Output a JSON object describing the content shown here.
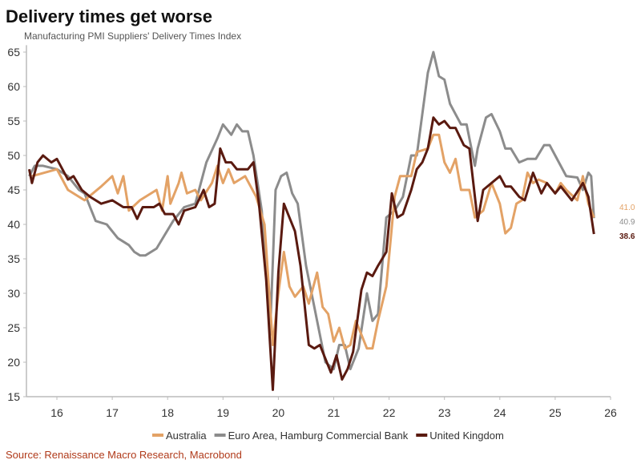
{
  "chart_data": {
    "type": "line",
    "title": "Delivery times get worse",
    "subtitle": "Manufacturing PMI Suppliers' Delivery Times Index",
    "source": "Source: Renaissance Macro Research, Macrobond",
    "xlim": [
      15.45,
      26
    ],
    "ylim": [
      15,
      66
    ],
    "xticks": [
      "16",
      "17",
      "18",
      "19",
      "20",
      "21",
      "22",
      "23",
      "24",
      "25",
      "26"
    ],
    "yticks": [
      "15",
      "20",
      "25",
      "30",
      "35",
      "40",
      "45",
      "50",
      "55",
      "60",
      "65"
    ],
    "grid": false,
    "legend": "bottom",
    "series": [
      {
        "name": "Australia",
        "color": "#E3A266",
        "end_label": "41.0",
        "points": [
          [
            15.55,
            47
          ],
          [
            16.0,
            48
          ],
          [
            16.2,
            45
          ],
          [
            16.5,
            43.5
          ],
          [
            16.8,
            45.5
          ],
          [
            17.0,
            47
          ],
          [
            17.1,
            44.5
          ],
          [
            17.2,
            47
          ],
          [
            17.3,
            42
          ],
          [
            17.5,
            43.5
          ],
          [
            17.8,
            45
          ],
          [
            17.9,
            42
          ],
          [
            18.0,
            47
          ],
          [
            18.05,
            43
          ],
          [
            18.2,
            46
          ],
          [
            18.25,
            47.5
          ],
          [
            18.35,
            44.5
          ],
          [
            18.5,
            45
          ],
          [
            18.6,
            43.5
          ],
          [
            18.8,
            46
          ],
          [
            18.9,
            48.5
          ],
          [
            19.0,
            46
          ],
          [
            19.1,
            48
          ],
          [
            19.2,
            46
          ],
          [
            19.4,
            47
          ],
          [
            19.6,
            44
          ],
          [
            19.75,
            40
          ],
          [
            19.9,
            22.5
          ],
          [
            20.0,
            30
          ],
          [
            20.1,
            36
          ],
          [
            20.2,
            31
          ],
          [
            20.3,
            29.5
          ],
          [
            20.45,
            31
          ],
          [
            20.55,
            28.5
          ],
          [
            20.7,
            33
          ],
          [
            20.8,
            28
          ],
          [
            20.9,
            27
          ],
          [
            21.0,
            23
          ],
          [
            21.1,
            25
          ],
          [
            21.2,
            22
          ],
          [
            21.3,
            22.5
          ],
          [
            21.4,
            26
          ],
          [
            21.5,
            24
          ],
          [
            21.6,
            22
          ],
          [
            21.7,
            22
          ],
          [
            21.8,
            26
          ],
          [
            21.95,
            31
          ],
          [
            22.1,
            44
          ],
          [
            22.2,
            47
          ],
          [
            22.4,
            47
          ],
          [
            22.5,
            50.5
          ],
          [
            22.7,
            51
          ],
          [
            22.8,
            53
          ],
          [
            22.9,
            53
          ],
          [
            23.0,
            49
          ],
          [
            23.1,
            47.5
          ],
          [
            23.2,
            49.5
          ],
          [
            23.3,
            45
          ],
          [
            23.45,
            45
          ],
          [
            23.55,
            41
          ],
          [
            23.7,
            42
          ],
          [
            23.85,
            46
          ],
          [
            24.0,
            43
          ],
          [
            24.1,
            38.7
          ],
          [
            24.2,
            39.5
          ],
          [
            24.3,
            43
          ],
          [
            24.4,
            43.5
          ],
          [
            24.5,
            47.5
          ],
          [
            24.6,
            46
          ],
          [
            24.7,
            46.5
          ],
          [
            24.85,
            46
          ],
          [
            25.0,
            44.5
          ],
          [
            25.1,
            46
          ],
          [
            25.2,
            45
          ],
          [
            25.4,
            43.5
          ],
          [
            25.5,
            47
          ],
          [
            25.6,
            43
          ],
          [
            25.7,
            41.0
          ]
        ]
      },
      {
        "name": "Euro Area, Hamburg Commercial Bank",
        "color": "#8C8C8C",
        "end_label": "40.9",
        "points": [
          [
            15.5,
            47
          ],
          [
            15.6,
            48.5
          ],
          [
            15.75,
            48.5
          ],
          [
            16.0,
            48
          ],
          [
            16.2,
            47
          ],
          [
            16.4,
            45
          ],
          [
            16.5,
            44.5
          ],
          [
            16.7,
            40.5
          ],
          [
            16.9,
            40
          ],
          [
            17.1,
            38
          ],
          [
            17.3,
            37
          ],
          [
            17.4,
            36
          ],
          [
            17.5,
            35.5
          ],
          [
            17.6,
            35.5
          ],
          [
            17.8,
            36.5
          ],
          [
            17.95,
            38.5
          ],
          [
            18.1,
            40.5
          ],
          [
            18.3,
            42.5
          ],
          [
            18.5,
            43
          ],
          [
            18.7,
            49
          ],
          [
            18.9,
            52.5
          ],
          [
            19.0,
            54.5
          ],
          [
            19.15,
            53
          ],
          [
            19.25,
            54.5
          ],
          [
            19.35,
            53.5
          ],
          [
            19.45,
            53.5
          ],
          [
            19.55,
            50
          ],
          [
            19.7,
            42
          ],
          [
            19.85,
            24
          ],
          [
            19.95,
            45
          ],
          [
            20.05,
            47
          ],
          [
            20.15,
            47.5
          ],
          [
            20.25,
            44.5
          ],
          [
            20.35,
            43
          ],
          [
            20.5,
            34
          ],
          [
            20.7,
            26
          ],
          [
            20.85,
            20
          ],
          [
            21.0,
            19
          ],
          [
            21.1,
            22.5
          ],
          [
            21.2,
            22.5
          ],
          [
            21.3,
            19
          ],
          [
            21.45,
            22
          ],
          [
            21.6,
            30
          ],
          [
            21.7,
            26
          ],
          [
            21.8,
            27
          ],
          [
            21.95,
            41
          ],
          [
            22.1,
            42
          ],
          [
            22.25,
            44
          ],
          [
            22.4,
            50
          ],
          [
            22.5,
            50
          ],
          [
            22.6,
            56
          ],
          [
            22.7,
            62
          ],
          [
            22.8,
            65
          ],
          [
            22.9,
            61.5
          ],
          [
            23.0,
            61
          ],
          [
            23.1,
            57.5
          ],
          [
            23.2,
            56
          ],
          [
            23.3,
            54.5
          ],
          [
            23.4,
            54.5
          ],
          [
            23.55,
            48.5
          ],
          [
            23.6,
            51
          ],
          [
            23.75,
            55.5
          ],
          [
            23.85,
            56
          ],
          [
            24.0,
            53.5
          ],
          [
            24.1,
            51
          ],
          [
            24.2,
            51
          ],
          [
            24.35,
            49
          ],
          [
            24.5,
            49.5
          ],
          [
            24.65,
            49.5
          ],
          [
            24.8,
            51.5
          ],
          [
            24.9,
            51.5
          ],
          [
            25.0,
            50
          ],
          [
            25.2,
            47
          ],
          [
            25.4,
            46.8
          ],
          [
            25.5,
            45
          ],
          [
            25.6,
            47.5
          ],
          [
            25.65,
            47
          ],
          [
            25.7,
            40.9
          ]
        ]
      },
      {
        "name": "United Kingdom",
        "color": "#5A1A10",
        "end_label": "38.6",
        "points": [
          [
            15.5,
            48
          ],
          [
            15.55,
            46
          ],
          [
            15.65,
            49
          ],
          [
            15.75,
            50
          ],
          [
            15.9,
            49
          ],
          [
            16.0,
            49.5
          ],
          [
            16.2,
            46.5
          ],
          [
            16.3,
            47
          ],
          [
            16.45,
            45
          ],
          [
            16.6,
            44
          ],
          [
            16.8,
            43
          ],
          [
            17.0,
            43.5
          ],
          [
            17.2,
            42.5
          ],
          [
            17.35,
            42.5
          ],
          [
            17.45,
            40.8
          ],
          [
            17.55,
            42.5
          ],
          [
            17.75,
            42.5
          ],
          [
            17.85,
            43
          ],
          [
            17.95,
            41.5
          ],
          [
            18.1,
            41.5
          ],
          [
            18.2,
            40
          ],
          [
            18.3,
            42
          ],
          [
            18.5,
            42.5
          ],
          [
            18.65,
            45
          ],
          [
            18.75,
            42.5
          ],
          [
            18.85,
            43
          ],
          [
            18.95,
            51
          ],
          [
            19.05,
            49
          ],
          [
            19.15,
            49
          ],
          [
            19.25,
            48
          ],
          [
            19.35,
            48
          ],
          [
            19.45,
            48
          ],
          [
            19.55,
            49
          ],
          [
            19.65,
            43
          ],
          [
            19.78,
            32
          ],
          [
            19.9,
            16
          ],
          [
            20.0,
            33
          ],
          [
            20.1,
            43
          ],
          [
            20.2,
            41
          ],
          [
            20.3,
            39
          ],
          [
            20.4,
            34
          ],
          [
            20.55,
            22.5
          ],
          [
            20.65,
            22
          ],
          [
            20.75,
            22.5
          ],
          [
            20.85,
            20.5
          ],
          [
            20.95,
            18.5
          ],
          [
            21.05,
            21
          ],
          [
            21.15,
            17.5
          ],
          [
            21.25,
            19
          ],
          [
            21.35,
            21.5
          ],
          [
            21.5,
            30.5
          ],
          [
            21.6,
            33
          ],
          [
            21.7,
            32.5
          ],
          [
            21.8,
            34
          ],
          [
            21.95,
            36
          ],
          [
            22.05,
            44.5
          ],
          [
            22.15,
            41
          ],
          [
            22.25,
            41.5
          ],
          [
            22.4,
            45
          ],
          [
            22.5,
            48
          ],
          [
            22.6,
            49
          ],
          [
            22.7,
            51
          ],
          [
            22.8,
            55.5
          ],
          [
            22.9,
            54.5
          ],
          [
            23.0,
            55
          ],
          [
            23.1,
            54
          ],
          [
            23.2,
            54
          ],
          [
            23.35,
            51.5
          ],
          [
            23.45,
            51
          ],
          [
            23.6,
            40.5
          ],
          [
            23.7,
            45
          ],
          [
            23.85,
            46
          ],
          [
            24.0,
            47
          ],
          [
            24.1,
            45.5
          ],
          [
            24.2,
            45.5
          ],
          [
            24.35,
            44
          ],
          [
            24.45,
            43.5
          ],
          [
            24.6,
            47.5
          ],
          [
            24.75,
            44.5
          ],
          [
            24.85,
            46
          ],
          [
            25.0,
            44.5
          ],
          [
            25.1,
            45.5
          ],
          [
            25.2,
            44.5
          ],
          [
            25.3,
            43.5
          ],
          [
            25.5,
            46
          ],
          [
            25.6,
            44
          ],
          [
            25.7,
            38.6
          ]
        ]
      }
    ]
  }
}
